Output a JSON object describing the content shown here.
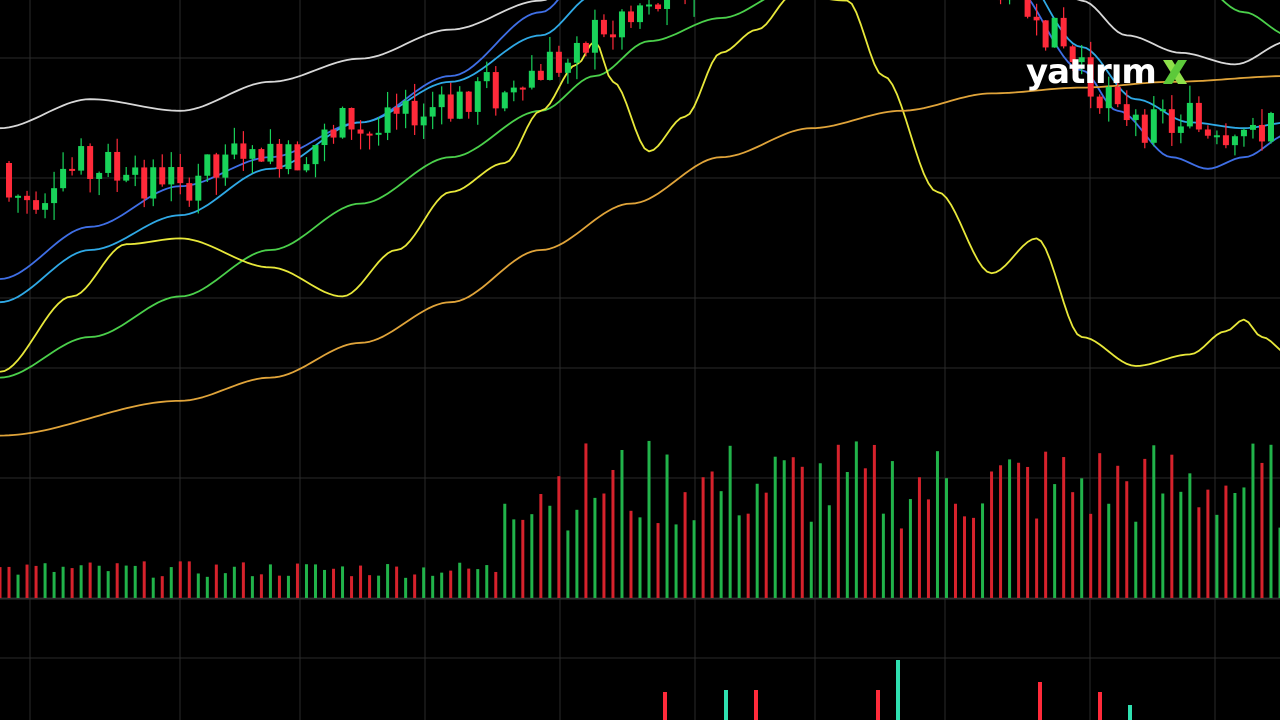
{
  "brand": {
    "text": "yatırım",
    "mark_name": "x-mark-icon",
    "mark_letter": "X",
    "mark_color": "#8ee04a"
  },
  "colors": {
    "background": "#000000",
    "grid": "#2a2a2a",
    "up": "#19d35a",
    "down": "#ff2a3a",
    "volume_up": "#21b34a",
    "volume_down": "#d6222c"
  },
  "chart_data": [
    {
      "type": "candlestick",
      "title": "",
      "xlabel": "",
      "ylabel": "",
      "grid": true,
      "x_range": [
        0,
        143
      ],
      "ylim": [
        0,
        100
      ],
      "candles": [],
      "overlays": [
        {
          "color": "#d8d8d8",
          "points": [
            [
              0,
              71
            ],
            [
              10,
              76
            ],
            [
              20,
              74
            ],
            [
              30,
              79
            ],
            [
              40,
              83
            ],
            [
              50,
              88
            ],
            [
              60,
              93
            ],
            [
              66,
              99
            ],
            [
              72,
              105
            ],
            [
              80,
              112
            ],
            [
              84,
              120
            ],
            [
              88,
              128
            ],
            [
              93,
              131
            ],
            [
              98,
              128
            ],
            [
              104,
              120
            ],
            [
              114,
              104
            ],
            [
              120,
              93
            ],
            [
              125,
              87
            ],
            [
              131,
              84
            ],
            [
              137,
              82
            ],
            [
              143,
              86
            ]
          ]
        },
        {
          "color": "#3f6fe6",
          "points": [
            [
              0,
              45
            ],
            [
              10,
              54
            ],
            [
              20,
              61
            ],
            [
              30,
              66
            ],
            [
              40,
              72
            ],
            [
              50,
              80
            ],
            [
              60,
              91
            ],
            [
              66,
              100
            ],
            [
              72,
              109
            ],
            [
              80,
              117
            ],
            [
              88,
              124
            ],
            [
              96,
              122
            ],
            [
              104,
              113
            ],
            [
              112,
              96
            ],
            [
              120,
              81
            ],
            [
              124,
              74
            ],
            [
              130,
              66
            ],
            [
              134,
              64
            ],
            [
              138,
              66
            ],
            [
              143,
              70
            ]
          ]
        },
        {
          "color": "#2fa9e6",
          "points": [
            [
              0,
              41
            ],
            [
              10,
              50
            ],
            [
              20,
              56
            ],
            [
              30,
              64
            ],
            [
              40,
              72
            ],
            [
              50,
              79
            ],
            [
              60,
              87
            ],
            [
              66,
              94
            ],
            [
              72,
              101
            ],
            [
              80,
              111
            ],
            [
              88,
              119
            ],
            [
              96,
              120
            ],
            [
              104,
              114
            ],
            [
              112,
              100
            ],
            [
              120,
              85
            ],
            [
              126,
              76
            ],
            [
              132,
              72
            ],
            [
              138,
              71
            ],
            [
              143,
              72
            ]
          ]
        },
        {
          "color": "#4bd04b",
          "points": [
            [
              0,
              28
            ],
            [
              10,
              35
            ],
            [
              20,
              42
            ],
            [
              30,
              50
            ],
            [
              40,
              58
            ],
            [
              50,
              66
            ],
            [
              60,
              74
            ],
            [
              66,
              80
            ],
            [
              72,
              86
            ],
            [
              80,
              90
            ],
            [
              88,
              95
            ],
            [
              96,
              99
            ],
            [
              104,
              104
            ],
            [
              112,
              106
            ],
            [
              120,
              104
            ],
            [
              126,
              101
            ],
            [
              132,
              97
            ],
            [
              138,
              91
            ],
            [
              143,
              87
            ]
          ]
        },
        {
          "color": "#e8e83a",
          "points": [
            [
              0,
              29
            ],
            [
              8,
              42
            ],
            [
              14,
              51
            ],
            [
              20,
              52
            ],
            [
              30,
              47
            ],
            [
              38,
              42
            ],
            [
              44,
              50
            ],
            [
              50,
              60
            ],
            [
              56,
              65
            ],
            [
              60,
              74
            ],
            [
              64,
              82
            ],
            [
              66,
              86
            ],
            [
              68,
              79
            ],
            [
              72,
              67
            ],
            [
              76,
              73
            ],
            [
              80,
              84
            ],
            [
              84,
              88
            ],
            [
              88,
              94
            ],
            [
              94,
              93
            ],
            [
              98,
              80
            ],
            [
              104,
              60
            ],
            [
              110,
              46
            ],
            [
              115,
              52
            ],
            [
              120,
              35
            ],
            [
              126,
              30
            ],
            [
              132,
              32
            ],
            [
              136,
              36
            ],
            [
              138,
              38
            ],
            [
              140,
              35
            ],
            [
              143,
              32
            ]
          ]
        },
        {
          "color": "#e0a43a",
          "points": [
            [
              0,
              18
            ],
            [
              20,
              24
            ],
            [
              30,
              28
            ],
            [
              40,
              34
            ],
            [
              50,
              41
            ],
            [
              60,
              50
            ],
            [
              70,
              58
            ],
            [
              80,
              66
            ],
            [
              90,
              71
            ],
            [
              100,
              74
            ],
            [
              110,
              77
            ],
            [
              120,
              78
            ],
            [
              130,
              79
            ],
            [
              143,
              80
            ]
          ]
        }
      ]
    },
    {
      "type": "bar",
      "title": "",
      "xlabel": "",
      "ylabel": "",
      "grid": true,
      "x_range": [
        0,
        143
      ],
      "ylim": [
        0,
        100
      ],
      "series": [
        {
          "name": "",
          "values": []
        }
      ]
    }
  ]
}
